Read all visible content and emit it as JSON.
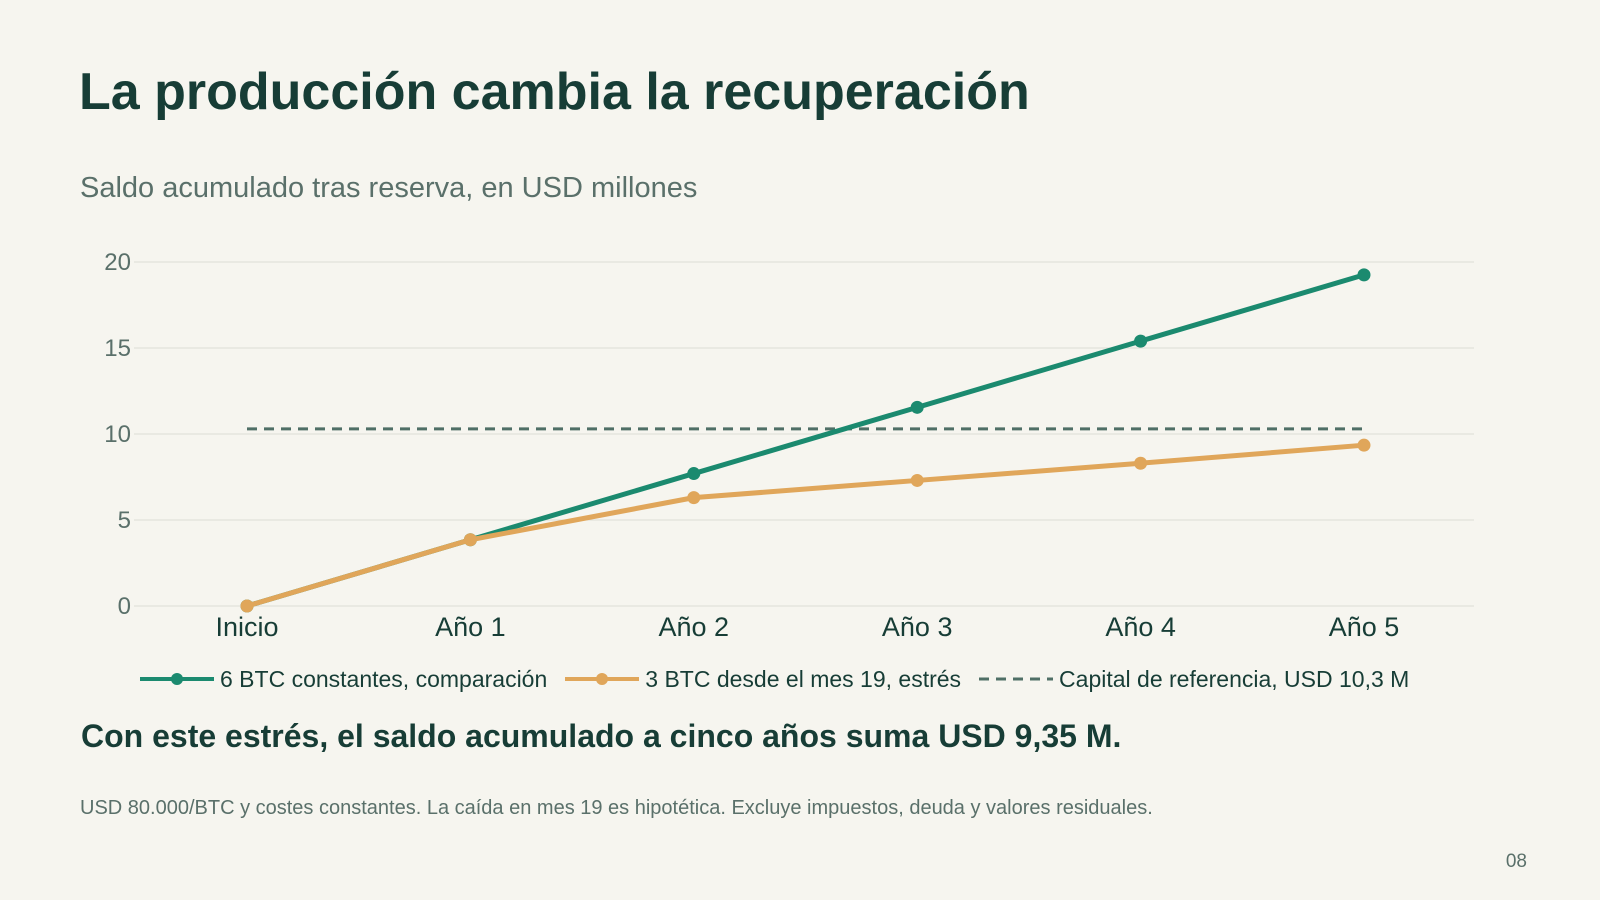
{
  "slide": {
    "title": "La producción cambia la recuperación",
    "subtitle": "Saldo acumulado tras reserva, en USD millones",
    "conclusion": "Con este estrés, el saldo acumulado a cinco años suma USD 9,35 M.",
    "footnote": "USD 80.000/BTC y costes constantes. La caída en mes 19 es hipotética. Excluye impuestos, deuda y valores residuales.",
    "page_number": "08"
  },
  "chart_data": {
    "type": "line",
    "categories": [
      "Inicio",
      "Año 1",
      "Año 2",
      "Año 3",
      "Año 4",
      "Año 5"
    ],
    "yticks": [
      0,
      5,
      10,
      15,
      20
    ],
    "ylim": [
      0,
      20
    ],
    "grid": true,
    "legend_position": "bottom",
    "series": [
      {
        "name": "6 BTC constantes, comparación",
        "values": [
          0,
          3.85,
          7.7,
          11.55,
          15.4,
          19.25
        ],
        "color": "#1b8a6f",
        "style": "solid",
        "markers": true
      },
      {
        "name": "3 BTC desde el mes 19, estrés",
        "values": [
          0,
          3.85,
          6.3,
          7.3,
          8.3,
          9.35
        ],
        "color": "#e0a65a",
        "style": "solid",
        "markers": true
      },
      {
        "name": "Capital de referencia, USD 10,3 M",
        "values": [
          10.3,
          10.3,
          10.3,
          10.3,
          10.3,
          10.3
        ],
        "color": "#4f6f66",
        "style": "dashed",
        "markers": false
      }
    ]
  }
}
